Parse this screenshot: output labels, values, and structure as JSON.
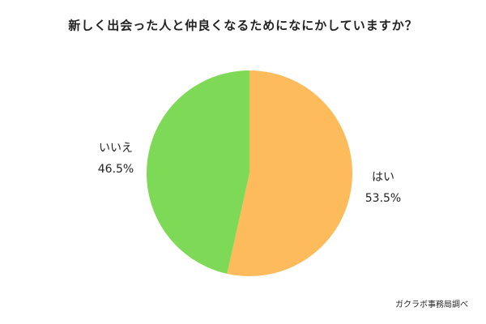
{
  "chart_data": {
    "type": "pie",
    "title": "新しく出会った人と仲良くなるためになにかしていますか？",
    "categories": [
      "はい",
      "いいえ"
    ],
    "values": [
      53.5,
      46.5
    ],
    "value_labels": [
      "53.5%",
      "46.5%"
    ],
    "colors": [
      "#fdbb5c",
      "#7ed957"
    ],
    "source": "ガクラボ事務局調べ"
  }
}
